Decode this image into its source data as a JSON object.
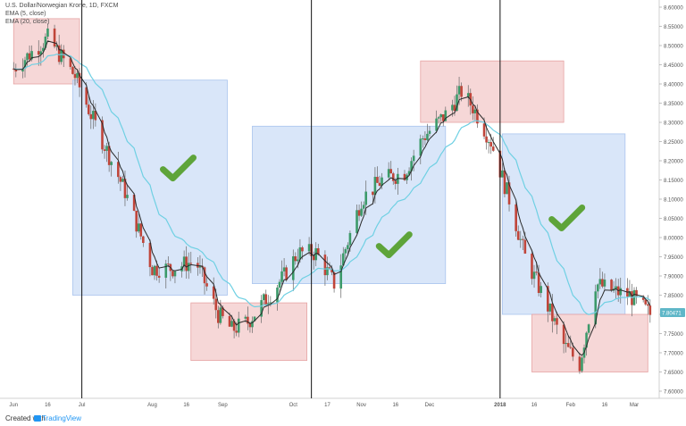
{
  "legend": {
    "title": "U.S. Dollar/Norwegian Krone, 1D, FXCM",
    "ema5": "EMA (5, close)",
    "ema20": "EMA (20, close)"
  },
  "footer": {
    "created": "Created with",
    "brand": "TradingView"
  },
  "colors": {
    "up": "#3c9a6a",
    "down": "#c0453a",
    "ema5": "#2a2a2a",
    "ema20": "#6fd0e3",
    "blue_zone": "#c9dcf7",
    "red_zone": "#f3c9c9",
    "check": "#5ea43a",
    "price_badge": "#5fb7c8"
  },
  "chart_data": {
    "type": "candlestick",
    "title": "U.S. Dollar/Norwegian Krone, 1D, FXCM",
    "series": [
      {
        "name": "EMA (5, close)"
      },
      {
        "name": "EMA (20, close)"
      }
    ],
    "ylim": [
      7.6,
      8.6
    ],
    "y_ticks": [
      "8.60000",
      "8.55000",
      "8.50000",
      "8.45000",
      "8.40000",
      "8.35000",
      "8.30000",
      "8.25000",
      "8.20000",
      "8.15000",
      "8.10000",
      "8.05000",
      "8.00000",
      "7.95000",
      "7.90000",
      "7.85000",
      "7.80000",
      "7.75000",
      "7.70000",
      "7.65000",
      "7.60000"
    ],
    "x_ticks": [
      "Jun",
      "16",
      "Jul",
      "Aug",
      "16",
      "Sep",
      "Oct",
      "17",
      "Nov",
      "16",
      "Dec",
      "2018",
      "16",
      "Feb",
      "16",
      "Mar"
    ],
    "last_price": "7.80471",
    "close_anchors": [
      [
        "2017-06-01",
        8.44
      ],
      [
        "2017-06-16",
        8.52
      ],
      [
        "2017-06-28",
        8.42
      ],
      [
        "2017-07-05",
        8.32
      ],
      [
        "2017-07-20",
        8.12
      ],
      [
        "2017-08-01",
        7.92
      ],
      [
        "2017-08-10",
        7.92
      ],
      [
        "2017-08-20",
        7.94
      ],
      [
        "2017-08-30",
        7.8
      ],
      [
        "2017-09-05",
        7.76
      ],
      [
        "2017-09-12",
        7.78
      ],
      [
        "2017-09-20",
        7.84
      ],
      [
        "2017-09-28",
        7.9
      ],
      [
        "2017-10-04",
        7.96
      ],
      [
        "2017-10-12",
        7.96
      ],
      [
        "2017-10-20",
        7.88
      ],
      [
        "2017-11-01",
        8.1
      ],
      [
        "2017-11-10",
        8.15
      ],
      [
        "2017-11-20",
        8.17
      ],
      [
        "2017-11-28",
        8.26
      ],
      [
        "2017-12-08",
        8.32
      ],
      [
        "2017-12-15",
        8.38
      ],
      [
        "2017-12-20",
        8.34
      ],
      [
        "2017-12-28",
        8.25
      ],
      [
        "2018-01-05",
        8.1
      ],
      [
        "2018-01-12",
        7.95
      ],
      [
        "2018-01-22",
        7.82
      ],
      [
        "2018-01-29",
        7.72
      ],
      [
        "2018-02-05",
        7.67
      ],
      [
        "2018-02-12",
        7.88
      ],
      [
        "2018-02-20",
        7.86
      ],
      [
        "2018-02-27",
        7.85
      ],
      [
        "2018-03-08",
        7.8
      ]
    ],
    "zones": [
      {
        "kind": "sell",
        "x": [
          "2017-06-01",
          "2017-06-30"
        ],
        "y": [
          8.4,
          8.57
        ]
      },
      {
        "kind": "trend",
        "x": [
          "2017-06-27",
          "2017-09-03"
        ],
        "y": [
          7.85,
          8.41
        ]
      },
      {
        "kind": "buy",
        "x": [
          "2017-08-18",
          "2017-10-08"
        ],
        "y": [
          7.68,
          7.83
        ]
      },
      {
        "kind": "trend",
        "x": [
          "2017-09-14",
          "2017-12-08"
        ],
        "y": [
          7.88,
          8.29
        ]
      },
      {
        "kind": "sell",
        "x": [
          "2017-11-27",
          "2018-01-29"
        ],
        "y": [
          8.3,
          8.46
        ]
      },
      {
        "kind": "trend",
        "x": [
          "2018-01-02",
          "2018-02-25"
        ],
        "y": [
          7.8,
          8.27
        ]
      },
      {
        "kind": "buy",
        "x": [
          "2018-01-15",
          "2018-03-07"
        ],
        "y": [
          7.65,
          7.8
        ]
      }
    ],
    "checkmarks": [
      {
        "date": "2017-08-12",
        "value": 8.18
      },
      {
        "date": "2017-11-15",
        "value": 7.98
      },
      {
        "date": "2018-01-30",
        "value": 8.05
      }
    ],
    "vertical_markers": [
      "2017-07-01",
      "2017-10-10",
      "2018-01-01"
    ]
  }
}
